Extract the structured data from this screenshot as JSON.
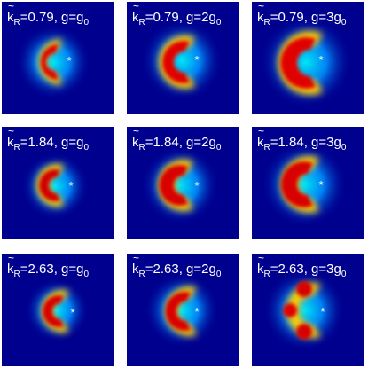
{
  "colors": {
    "background": "#00008f",
    "map_stops": [
      "#00008f",
      "#0000ff",
      "#0080ff",
      "#00ffff",
      "#80ff80",
      "#ffff00",
      "#ff8000",
      "#ff0000",
      "#800000"
    ],
    "marker": "#ffffff"
  },
  "panels": [
    {
      "k_symbol": "k",
      "k_sub": "R",
      "k_value": "=0.79, g=g",
      "g_sub": "0",
      "g_prefix": ""
    },
    {
      "k_symbol": "k",
      "k_sub": "R",
      "k_value": "=0.79, g=2g",
      "g_sub": "0"
    },
    {
      "k_symbol": "k",
      "k_sub": "R",
      "k_value": "=0.79, g=3g",
      "g_sub": "0"
    },
    {
      "k_symbol": "k",
      "k_sub": "R",
      "k_value": "=1.84, g=g",
      "g_sub": "0"
    },
    {
      "k_symbol": "k",
      "k_sub": "R",
      "k_value": "=1.84, g=2g",
      "g_sub": "0"
    },
    {
      "k_symbol": "k",
      "k_sub": "R",
      "k_value": "=1.84, g=3g",
      "g_sub": "0"
    },
    {
      "k_symbol": "k",
      "k_sub": "R",
      "k_value": "=2.63, g=g",
      "g_sub": "0"
    },
    {
      "k_symbol": "k",
      "k_sub": "R",
      "k_value": "=2.63, g=2g",
      "g_sub": "0"
    },
    {
      "k_symbol": "k",
      "k_sub": "R",
      "k_value": "=2.63, g=3g",
      "g_sub": "0"
    }
  ],
  "marker_glyph": "*"
}
